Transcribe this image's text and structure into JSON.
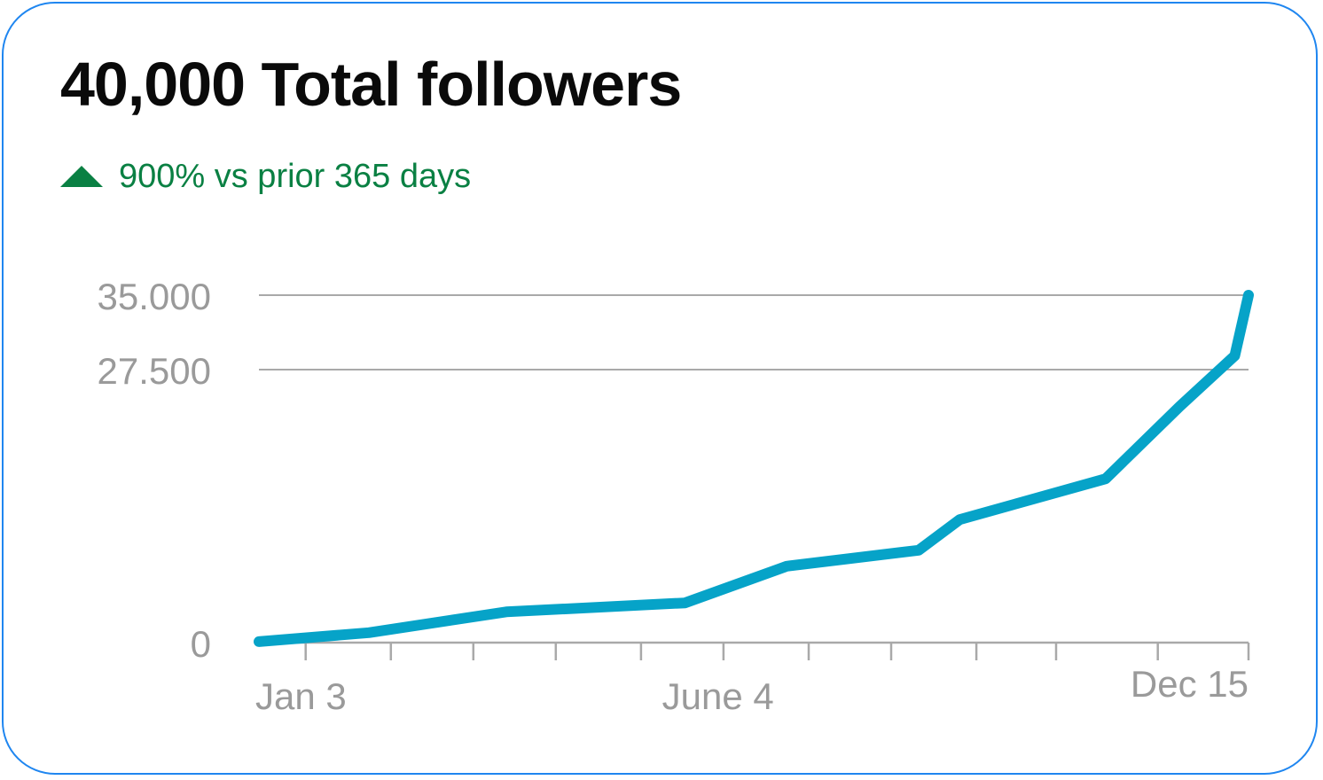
{
  "header": {
    "title": "40,000 Total followers",
    "delta_text": "900% vs prior 365 days",
    "delta_icon": "triangle-up-icon",
    "delta_color": "#0a8043"
  },
  "colors": {
    "border": "#1f86f0",
    "line": "#06a3c8",
    "grid": "#a9a9a9",
    "tick_text": "#9a9a9a"
  },
  "chart_data": {
    "type": "line",
    "title": "40,000 Total followers",
    "xlabel": "",
    "ylabel": "",
    "ylim": [
      0,
      35000
    ],
    "y_ticks": [
      {
        "value": 0,
        "label": "0"
      },
      {
        "value": 27500,
        "label": "27.500"
      },
      {
        "value": 35000,
        "label": "35.000"
      }
    ],
    "x_domain": [
      0,
      360
    ],
    "x_tick_labels": [
      {
        "x": 17,
        "label": "Jan 3"
      },
      {
        "x": 167,
        "label": "June 4"
      },
      {
        "x": 362,
        "label": "Dec 15"
      }
    ],
    "x_minor_ticks": [
      17,
      48,
      78,
      108,
      139,
      169,
      200,
      230,
      261,
      290,
      327,
      360
    ],
    "grid": true,
    "series": [
      {
        "x": [
          0,
          40,
          90,
          155,
          192,
          240,
          255,
          308,
          335,
          355,
          360
        ],
        "y": [
          100,
          1000,
          3100,
          4000,
          7700,
          9300,
          12400,
          16500,
          23800,
          28900,
          35000
        ]
      }
    ]
  }
}
